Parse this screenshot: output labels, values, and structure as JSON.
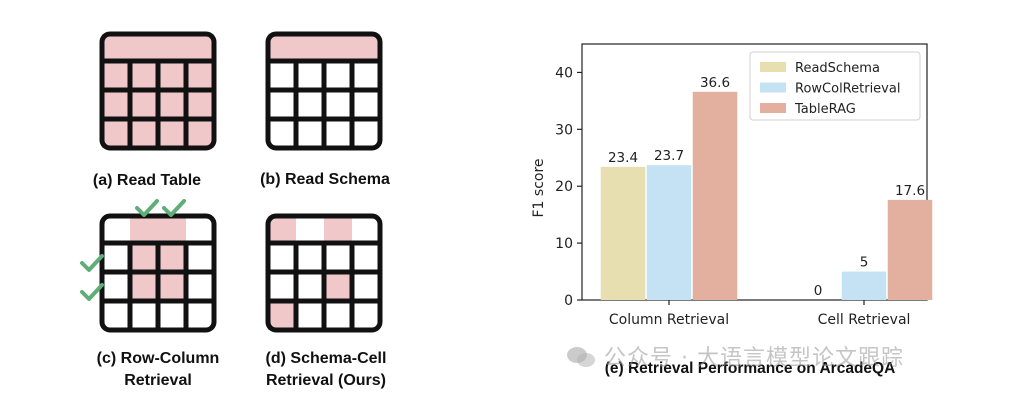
{
  "left_panel": {
    "captions": {
      "a": "(a) Read Table",
      "b": "(b) Read Schema",
      "c_line1": "(c) Row-Column",
      "c_line2": "Retrieval",
      "d_line1": "(d) Schema-Cell",
      "d_line2": "Retrieval (Ours)"
    },
    "colors": {
      "highlight": "#f0c8ca",
      "grid": "#111111",
      "check": "#5fae78"
    }
  },
  "watermark": {
    "text": "公众号 · 大语言模型论文跟踪",
    "icon": "wechat-icon"
  },
  "chart_data": {
    "type": "bar",
    "title": "(e) Retrieval Performance on ArcadeQA",
    "xlabel": "",
    "ylabel": "F1 score",
    "ylim": [
      0,
      45
    ],
    "yticks": [
      0,
      10,
      20,
      30,
      40
    ],
    "grid": false,
    "legend_position": "top-right",
    "categories": [
      "Column Retrieval",
      "Cell Retrieval"
    ],
    "series": [
      {
        "name": "ReadSchema",
        "values": [
          23.4,
          0
        ],
        "labels": [
          "23.4",
          "0"
        ],
        "color": "#e8dfb0"
      },
      {
        "name": "RowColRetrieval",
        "values": [
          23.7,
          5
        ],
        "labels": [
          "23.7",
          "5"
        ],
        "color": "#c5e2f4"
      },
      {
        "name": "TableRAG",
        "values": [
          36.6,
          17.6
        ],
        "labels": [
          "36.6",
          "17.6"
        ],
        "color": "#e3b0a0"
      }
    ]
  }
}
